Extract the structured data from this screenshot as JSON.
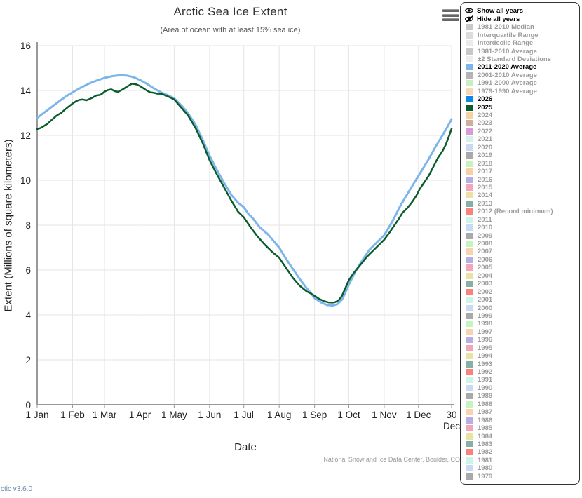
{
  "chart": {
    "title": "Arctic Sea Ice Extent",
    "subtitle": "(Area of ocean with at least 15% sea ice)",
    "xlabel": "Date",
    "ylabel": "Extent (Millions of square kilometers)",
    "credit": "National Snow and Ice Data Center, Boulder, CO"
  },
  "footer": {
    "version_link": "ctic v3.6.0"
  },
  "icons": {
    "menu": "hamburger-menu",
    "show": "eye",
    "hide": "eye-slash"
  },
  "legend": {
    "show_all_label": "Show all years",
    "hide_all_label": "Hide all years",
    "items": [
      {
        "label": "1981-2010 Median",
        "color": "#c8c8c8",
        "active": false
      },
      {
        "label": "Interquartile Range",
        "color": "#dcdcdc",
        "active": false
      },
      {
        "label": "Interdecile Range",
        "color": "#eaeaea",
        "active": false
      },
      {
        "label": "1981-2010 Average",
        "color": "#c8c8c8",
        "active": false
      },
      {
        "label": "±2 Standard Deviations",
        "color": "#ededed",
        "active": false
      },
      {
        "label": "2011-2020 Average",
        "color": "#7cb5ec",
        "active": true
      },
      {
        "label": "2001-2010 Average",
        "color": "#b4b4b4",
        "active": false
      },
      {
        "label": "1991-2000 Average",
        "color": "#c9eec3",
        "active": false
      },
      {
        "label": "1979-1990 Average",
        "color": "#f8d7b4",
        "active": false
      },
      {
        "label": "2026",
        "color": "#0d88e6",
        "active": true
      },
      {
        "label": "2025",
        "color": "#0a5c2c",
        "active": true
      },
      {
        "label": "2024",
        "color": "#f7d0a4",
        "active": false
      },
      {
        "label": "2023",
        "color": "#cfae9c",
        "active": false
      },
      {
        "label": "2022",
        "color": "#da9ad8",
        "active": false
      },
      {
        "label": "2021",
        "color": "#d4f2e8",
        "active": false
      },
      {
        "label": "2020",
        "color": "#ccd8f0",
        "active": false
      },
      {
        "label": "2019",
        "color": "#a9a9a9",
        "active": false
      },
      {
        "label": "2018",
        "color": "#c6f2c0",
        "active": false
      },
      {
        "label": "2017",
        "color": "#f7d0a4",
        "active": false
      },
      {
        "label": "2016",
        "color": "#b7aee6",
        "active": false
      },
      {
        "label": "2015",
        "color": "#f3a6b8",
        "active": false
      },
      {
        "label": "2014",
        "color": "#e9e2a3",
        "active": false
      },
      {
        "label": "2013",
        "color": "#85b0a8",
        "active": false
      },
      {
        "label": "2012 (Record minimum)",
        "color": "#f9837b",
        "active": false
      },
      {
        "label": "2011",
        "color": "#ccf4e8",
        "active": false
      },
      {
        "label": "2010",
        "color": "#c6dcf4",
        "active": false
      },
      {
        "label": "2009",
        "color": "#a9a9a9",
        "active": false
      },
      {
        "label": "2008",
        "color": "#c6f4c0",
        "active": false
      },
      {
        "label": "2007",
        "color": "#f8d4ae",
        "active": false
      },
      {
        "label": "2006",
        "color": "#b7aee6",
        "active": false
      },
      {
        "label": "2005",
        "color": "#f3a6b8",
        "active": false
      },
      {
        "label": "2004",
        "color": "#e9e2a3",
        "active": false
      },
      {
        "label": "2003",
        "color": "#85b0a8",
        "active": false
      },
      {
        "label": "2002",
        "color": "#f9837b",
        "active": false
      },
      {
        "label": "2001",
        "color": "#ccf4e8",
        "active": false
      },
      {
        "label": "2000",
        "color": "#c6dcf4",
        "active": false
      },
      {
        "label": "1999",
        "color": "#a9a9a9",
        "active": false
      },
      {
        "label": "1998",
        "color": "#c6f4c0",
        "active": false
      },
      {
        "label": "1997",
        "color": "#f8d4ae",
        "active": false
      },
      {
        "label": "1996",
        "color": "#b7aee6",
        "active": false
      },
      {
        "label": "1995",
        "color": "#f3a6b8",
        "active": false
      },
      {
        "label": "1994",
        "color": "#e9e2a3",
        "active": false
      },
      {
        "label": "1993",
        "color": "#85b0a8",
        "active": false
      },
      {
        "label": "1992",
        "color": "#f9837b",
        "active": false
      },
      {
        "label": "1991",
        "color": "#ccf4e8",
        "active": false
      },
      {
        "label": "1990",
        "color": "#c6dcf4",
        "active": false
      },
      {
        "label": "1989",
        "color": "#a9a9a9",
        "active": false
      },
      {
        "label": "1988",
        "color": "#c6f4c0",
        "active": false
      },
      {
        "label": "1987",
        "color": "#f8d4ae",
        "active": false
      },
      {
        "label": "1986",
        "color": "#b7aee6",
        "active": false
      },
      {
        "label": "1985",
        "color": "#f3a6b8",
        "active": false
      },
      {
        "label": "1984",
        "color": "#e9e2a3",
        "active": false
      },
      {
        "label": "1983",
        "color": "#85b0a8",
        "active": false
      },
      {
        "label": "1982",
        "color": "#f9837b",
        "active": false
      },
      {
        "label": "1981",
        "color": "#ccf4e8",
        "active": false
      },
      {
        "label": "1980",
        "color": "#c6dcf4",
        "active": false
      },
      {
        "label": "1979",
        "color": "#a9a9a9",
        "active": false
      }
    ]
  },
  "chart_data": {
    "type": "line",
    "title": "Arctic Sea Ice Extent",
    "subtitle": "(Area of ocean with at least 15% sea ice)",
    "xlabel": "Date",
    "ylabel": "Extent (Millions of square kilometers)",
    "ylim": [
      0,
      16
    ],
    "yticks": [
      0,
      2,
      4,
      6,
      8,
      10,
      12,
      14,
      16
    ],
    "grid": true,
    "legend_position": "right",
    "xticks": [
      {
        "day": 1,
        "label": "1 Jan"
      },
      {
        "day": 32,
        "label": "1 Feb"
      },
      {
        "day": 60,
        "label": "1 Mar"
      },
      {
        "day": 91,
        "label": "1 Apr"
      },
      {
        "day": 121,
        "label": "1 May"
      },
      {
        "day": 152,
        "label": "1 Jun"
      },
      {
        "day": 182,
        "label": "1 Jul"
      },
      {
        "day": 213,
        "label": "1 Aug"
      },
      {
        "day": 244,
        "label": "1 Sep"
      },
      {
        "day": 274,
        "label": "1 Oct"
      },
      {
        "day": 305,
        "label": "1 Nov"
      },
      {
        "day": 335,
        "label": "1 Dec"
      },
      {
        "day": 364,
        "label": "30 Dec"
      }
    ],
    "x_unit": "day-of-year",
    "series": [
      {
        "name": "2011-2020 Average",
        "color": "#7cb5ec",
        "width": 3,
        "points": [
          [
            1,
            12.78
          ],
          [
            8,
            13.05
          ],
          [
            15,
            13.32
          ],
          [
            21,
            13.55
          ],
          [
            27,
            13.76
          ],
          [
            32,
            13.92
          ],
          [
            39,
            14.12
          ],
          [
            46,
            14.3
          ],
          [
            53,
            14.44
          ],
          [
            60,
            14.56
          ],
          [
            67,
            14.64
          ],
          [
            74,
            14.68
          ],
          [
            80,
            14.66
          ],
          [
            85,
            14.6
          ],
          [
            91,
            14.47
          ],
          [
            97,
            14.3
          ],
          [
            103,
            14.1
          ],
          [
            110,
            13.9
          ],
          [
            115,
            13.8
          ],
          [
            121,
            13.65
          ],
          [
            127,
            13.35
          ],
          [
            133,
            13.0
          ],
          [
            140,
            12.45
          ],
          [
            146,
            11.8
          ],
          [
            152,
            11.1
          ],
          [
            158,
            10.5
          ],
          [
            164,
            9.95
          ],
          [
            171,
            9.35
          ],
          [
            177,
            9.0
          ],
          [
            182,
            8.8
          ],
          [
            186,
            8.5
          ],
          [
            190,
            8.3
          ],
          [
            196,
            7.9
          ],
          [
            203,
            7.6
          ],
          [
            208,
            7.3
          ],
          [
            213,
            7.0
          ],
          [
            219,
            6.5
          ],
          [
            225,
            6.05
          ],
          [
            231,
            5.6
          ],
          [
            237,
            5.2
          ],
          [
            241,
            4.95
          ],
          [
            244,
            4.75
          ],
          [
            250,
            4.55
          ],
          [
            255,
            4.44
          ],
          [
            260,
            4.42
          ],
          [
            264,
            4.48
          ],
          [
            268,
            4.68
          ],
          [
            271,
            5.0
          ],
          [
            274,
            5.35
          ],
          [
            280,
            5.95
          ],
          [
            286,
            6.45
          ],
          [
            292,
            6.9
          ],
          [
            298,
            7.2
          ],
          [
            305,
            7.55
          ],
          [
            312,
            8.15
          ],
          [
            319,
            8.85
          ],
          [
            326,
            9.45
          ],
          [
            332,
            9.95
          ],
          [
            338,
            10.45
          ],
          [
            344,
            10.95
          ],
          [
            350,
            11.5
          ],
          [
            356,
            12.0
          ],
          [
            360,
            12.35
          ],
          [
            364,
            12.72
          ]
        ]
      },
      {
        "name": "2025",
        "color": "#0a5c2c",
        "width": 2.5,
        "points": [
          [
            1,
            12.28
          ],
          [
            4,
            12.33
          ],
          [
            7,
            12.42
          ],
          [
            10,
            12.52
          ],
          [
            14,
            12.7
          ],
          [
            18,
            12.88
          ],
          [
            22,
            13.0
          ],
          [
            26,
            13.18
          ],
          [
            29,
            13.3
          ],
          [
            32,
            13.42
          ],
          [
            35,
            13.52
          ],
          [
            38,
            13.58
          ],
          [
            41,
            13.6
          ],
          [
            44,
            13.56
          ],
          [
            46,
            13.6
          ],
          [
            49,
            13.67
          ],
          [
            53,
            13.78
          ],
          [
            56,
            13.8
          ],
          [
            58,
            13.86
          ],
          [
            60,
            13.95
          ],
          [
            63,
            14.02
          ],
          [
            66,
            14.05
          ],
          [
            69,
            13.97
          ],
          [
            72,
            13.94
          ],
          [
            76,
            14.05
          ],
          [
            80,
            14.18
          ],
          [
            84,
            14.3
          ],
          [
            88,
            14.27
          ],
          [
            91,
            14.2
          ],
          [
            94,
            14.1
          ],
          [
            97,
            14.0
          ],
          [
            100,
            13.92
          ],
          [
            103,
            13.9
          ],
          [
            106,
            13.86
          ],
          [
            110,
            13.85
          ],
          [
            115,
            13.75
          ],
          [
            121,
            13.6
          ],
          [
            127,
            13.25
          ],
          [
            133,
            12.9
          ],
          [
            140,
            12.3
          ],
          [
            146,
            11.65
          ],
          [
            152,
            10.9
          ],
          [
            158,
            10.3
          ],
          [
            164,
            9.75
          ],
          [
            171,
            9.1
          ],
          [
            177,
            8.6
          ],
          [
            182,
            8.35
          ],
          [
            188,
            7.9
          ],
          [
            194,
            7.5
          ],
          [
            200,
            7.15
          ],
          [
            203,
            7.0
          ],
          [
            207,
            6.8
          ],
          [
            213,
            6.55
          ],
          [
            219,
            6.1
          ],
          [
            225,
            5.65
          ],
          [
            231,
            5.3
          ],
          [
            237,
            5.05
          ],
          [
            241,
            4.95
          ],
          [
            244,
            4.85
          ],
          [
            248,
            4.72
          ],
          [
            252,
            4.62
          ],
          [
            256,
            4.56
          ],
          [
            260,
            4.55
          ],
          [
            262,
            4.57
          ],
          [
            265,
            4.65
          ],
          [
            268,
            4.85
          ],
          [
            271,
            5.2
          ],
          [
            274,
            5.55
          ],
          [
            278,
            5.85
          ],
          [
            282,
            6.1
          ],
          [
            286,
            6.35
          ],
          [
            290,
            6.6
          ],
          [
            294,
            6.8
          ],
          [
            298,
            7.0
          ],
          [
            302,
            7.2
          ],
          [
            305,
            7.35
          ],
          [
            310,
            7.7
          ],
          [
            314,
            8.0
          ],
          [
            318,
            8.3
          ],
          [
            321,
            8.55
          ],
          [
            325,
            8.75
          ],
          [
            329,
            9.0
          ],
          [
            333,
            9.3
          ],
          [
            336,
            9.6
          ],
          [
            340,
            9.9
          ],
          [
            344,
            10.2
          ],
          [
            348,
            10.6
          ],
          [
            352,
            11.0
          ],
          [
            356,
            11.3
          ],
          [
            359,
            11.6
          ],
          [
            362,
            12.0
          ],
          [
            364,
            12.3
          ]
        ]
      }
    ]
  }
}
